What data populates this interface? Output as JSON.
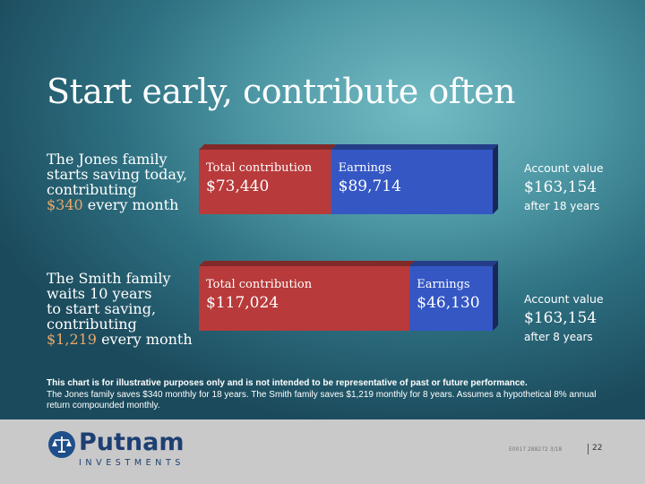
{
  "slide": {
    "title": "Start early, contribute often"
  },
  "rows": [
    {
      "label_lines": [
        "The Jones family",
        "starts saving today,",
        "contributing"
      ],
      "label_amount": "$340",
      "label_tail": " every month"
    },
    {
      "label_lines": [
        "The Smith family",
        "waits 10 years",
        "to start saving,",
        "contributing"
      ],
      "label_amount": "$1,219",
      "label_tail": " every month"
    }
  ],
  "chart_data": {
    "type": "bar",
    "orientation": "horizontal",
    "stacked": true,
    "categories": [
      "The Jones family",
      "The Smith family"
    ],
    "series": [
      {
        "name": "Total contribution",
        "values": [
          73440,
          117024
        ],
        "value_labels": [
          "$73,440",
          "$117,024"
        ],
        "color": "#b83a3a"
      },
      {
        "name": "Earnings",
        "values": [
          89714,
          46130
        ],
        "value_labels": [
          "$89,714",
          "$46,130"
        ],
        "color": "#3457c4"
      }
    ],
    "totals": [
      {
        "caption": "Account value",
        "value_label": "$163,154",
        "note": "after 18 years"
      },
      {
        "caption": "Account value",
        "value_label": "$163,154",
        "note": "after 8 years"
      }
    ]
  },
  "disclaimer": {
    "bold": "This chart is for illustrative purposes only and is not intended to be representative of past or future performance.",
    "body": "The Jones family saves $340 monthly for 18 years. The Smith family saves $1,219 monthly for 8 years. Assumes a hypothetical 8% annual return compounded monthly."
  },
  "footer": {
    "logo_name": "Putnam",
    "logo_sub": "INVESTMENTS",
    "code": "E0017  288272  3/18",
    "page": "22"
  },
  "colors": {
    "contribution": "#b83a3a",
    "earnings": "#3457c4",
    "accent_amount": "#e8a96a",
    "footer_bg": "#c9c9c9",
    "brand": "#1e3f73"
  }
}
